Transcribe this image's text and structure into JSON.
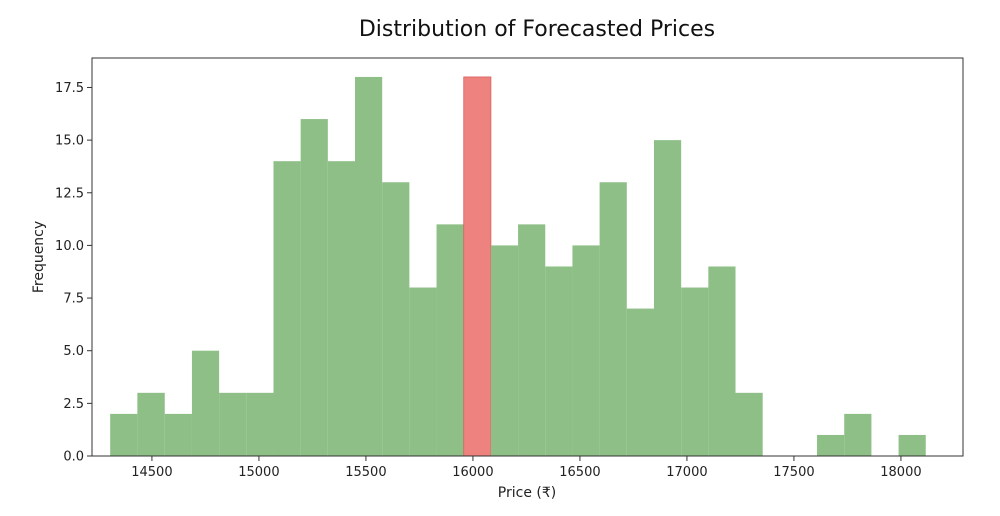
{
  "chart_data": {
    "type": "bar",
    "title": "Distribution of Forecasted Prices",
    "xlabel": "Price (₹)",
    "ylabel": "Frequency",
    "xlim": [
      14220,
      18290
    ],
    "ylim": [
      0,
      18.9
    ],
    "xticks": [
      14500,
      15000,
      15500,
      16000,
      16500,
      17000,
      17500,
      18000
    ],
    "yticks": [
      "0.0",
      "2.5",
      "5.0",
      "7.5",
      "10.0",
      "12.5",
      "15.0",
      "17.5"
    ],
    "grid": false,
    "colors": {
      "bars": "#8dbf86",
      "highlight": "#ee827f",
      "axis": "#333333"
    },
    "bins": [
      {
        "x0": 14305,
        "x1": 14432,
        "count": 2
      },
      {
        "x0": 14432,
        "x1": 14560,
        "count": 3
      },
      {
        "x0": 14560,
        "x1": 14687,
        "count": 2
      },
      {
        "x0": 14687,
        "x1": 14814,
        "count": 5
      },
      {
        "x0": 14814,
        "x1": 14941,
        "count": 3
      },
      {
        "x0": 14941,
        "x1": 15068,
        "count": 3
      },
      {
        "x0": 15068,
        "x1": 15195,
        "count": 14
      },
      {
        "x0": 15195,
        "x1": 15322,
        "count": 16
      },
      {
        "x0": 15322,
        "x1": 15449,
        "count": 14
      },
      {
        "x0": 15449,
        "x1": 15576,
        "count": 18
      },
      {
        "x0": 15576,
        "x1": 15703,
        "count": 13
      },
      {
        "x0": 15703,
        "x1": 15830,
        "count": 8
      },
      {
        "x0": 15830,
        "x1": 15957,
        "count": 11
      },
      {
        "x0": 15957,
        "x1": 16084,
        "count": 18,
        "highlight": true
      },
      {
        "x0": 16084,
        "x1": 16211,
        "count": 10
      },
      {
        "x0": 16211,
        "x1": 16338,
        "count": 11
      },
      {
        "x0": 16338,
        "x1": 16465,
        "count": 9
      },
      {
        "x0": 16465,
        "x1": 16592,
        "count": 10
      },
      {
        "x0": 16592,
        "x1": 16719,
        "count": 13
      },
      {
        "x0": 16719,
        "x1": 16846,
        "count": 7
      },
      {
        "x0": 16846,
        "x1": 16973,
        "count": 15
      },
      {
        "x0": 16973,
        "x1": 17100,
        "count": 8
      },
      {
        "x0": 17100,
        "x1": 17227,
        "count": 9
      },
      {
        "x0": 17227,
        "x1": 17354,
        "count": 3
      },
      {
        "x0": 17354,
        "x1": 17481,
        "count": 0
      },
      {
        "x0": 17481,
        "x1": 17608,
        "count": 0
      },
      {
        "x0": 17608,
        "x1": 17735,
        "count": 1
      },
      {
        "x0": 17735,
        "x1": 17862,
        "count": 2
      },
      {
        "x0": 17862,
        "x1": 17989,
        "count": 0
      },
      {
        "x0": 17989,
        "x1": 18116,
        "count": 1
      }
    ]
  }
}
